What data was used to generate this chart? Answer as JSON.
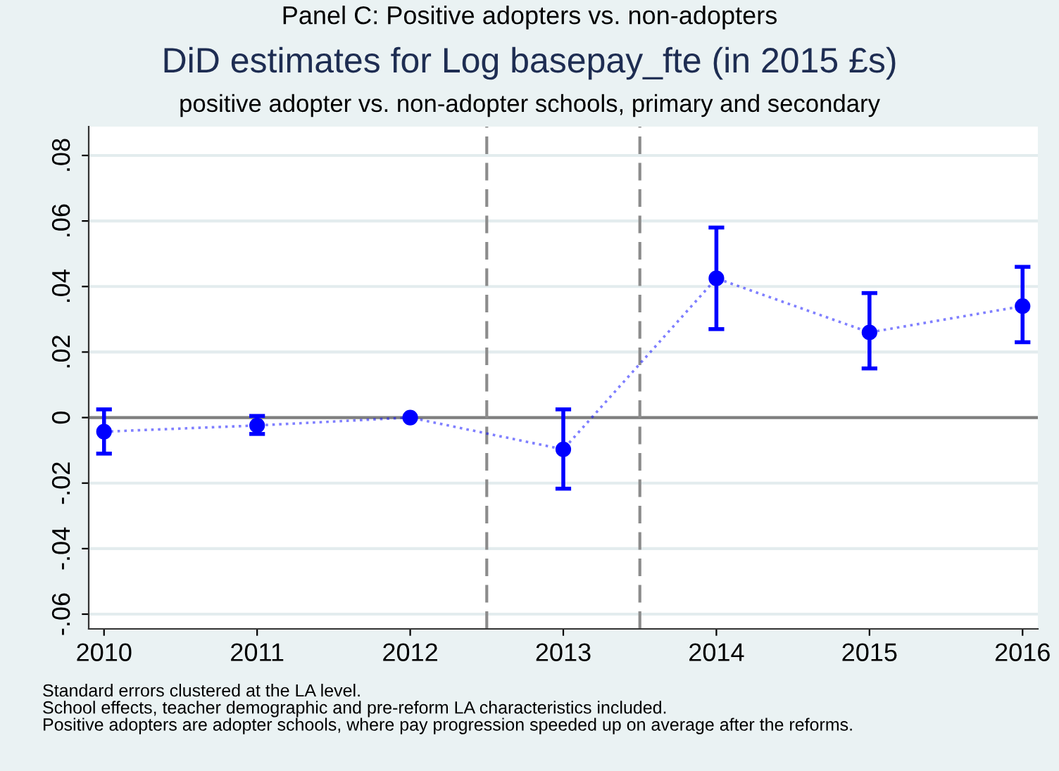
{
  "chart_data": {
    "type": "line",
    "title": "DiD estimates for Log basepay_fte (in 2015 £s)",
    "subtitle": "positive adopter vs. non-adopter schools, primary and secondary",
    "annotations": [
      "Panel C: Positive adopters vs. non-adopters",
      "Standard errors clustered at the LA level.\nSchool effects, teacher demographic and pre-reform LA characteristics included.\nPositive adopters are adopter schools, where pay progression speeded up on average after the reforms."
    ],
    "x": [
      2010,
      2011,
      2012,
      2013,
      2014,
      2015,
      2016
    ],
    "series": [
      {
        "color": "#0000ff",
        "values": [
          -0.0043,
          -0.0024,
          0,
          -0.0097,
          0.0425,
          0.026,
          0.034
        ],
        "errors": [
          [
            -0.011,
            0.0025
          ],
          [
            -0.005,
            0.0005
          ],
          null,
          [
            -0.0217,
            0.0025
          ],
          [
            0.027,
            0.058
          ],
          [
            0.015,
            0.038
          ],
          [
            0.023,
            0.046
          ]
        ]
      }
    ],
    "xlim": [
      2009.9,
      2016.1
    ],
    "xticks": [
      2010,
      2011,
      2012,
      2013,
      2014,
      2015,
      2016
    ],
    "ylim": [
      -0.0645,
      0.0888
    ],
    "yticks": [
      {
        "value": -0.06,
        "label": "-.06"
      },
      {
        "value": -0.04,
        "label": "-.04"
      },
      {
        "value": -0.02,
        "label": "-.02"
      },
      0,
      {
        "value": 0.02,
        "label": ".02"
      },
      {
        "value": 0.04,
        "label": ".04"
      },
      {
        "value": 0.06,
        "label": ".06"
      },
      {
        "value": 0.08,
        "label": ".08"
      }
    ],
    "ref_lines": [
      {
        "axis": "y",
        "value": 0,
        "color": "#7f7f7f",
        "line_style": "solid"
      },
      {
        "axis": "x",
        "value": 2012.5,
        "color": "#8c8c8c",
        "line_style": "dashed"
      },
      {
        "axis": "x",
        "value": 2013.5,
        "color": "#8c8c8c",
        "line_style": "dashed"
      }
    ],
    "grid": "y",
    "marker": "circle",
    "line_style": "dotted"
  }
}
